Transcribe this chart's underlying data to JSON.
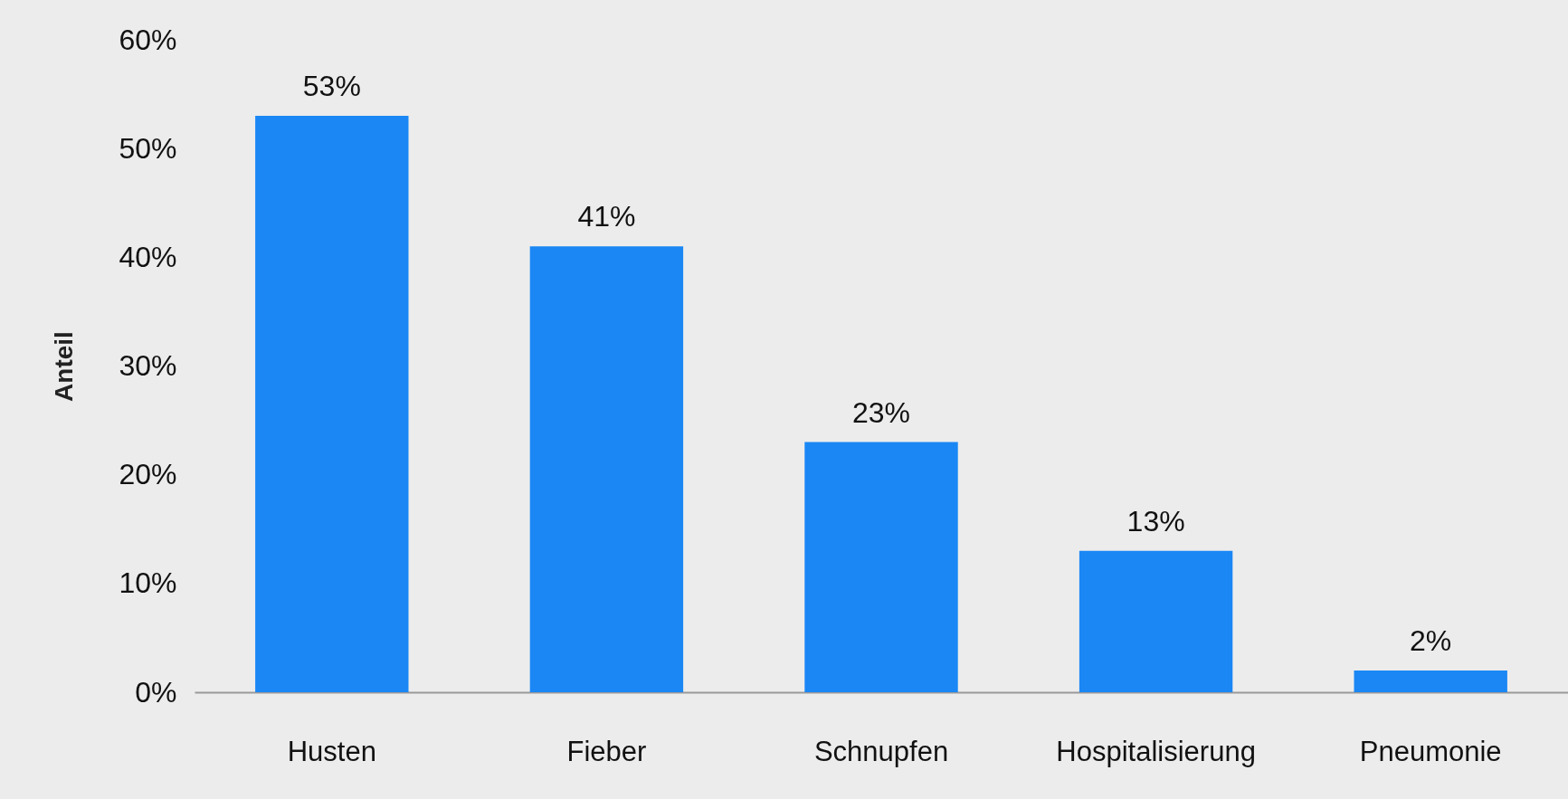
{
  "chart_data": {
    "type": "bar",
    "ylabel": "Anteil",
    "categories": [
      "Husten",
      "Fieber",
      "Schnupfen",
      "Hospitalisierung",
      "Pneumonie"
    ],
    "values": [
      53,
      41,
      23,
      13,
      2
    ],
    "color": "#1a87f5",
    "value_labels": [
      "53%",
      "41%",
      "23%",
      "13%",
      "2%"
    ],
    "ylim": [
      0,
      60
    ],
    "yticks": [
      {
        "value": 0,
        "label": "0%"
      },
      {
        "value": 10,
        "label": "10%"
      },
      {
        "value": 20,
        "label": "20%"
      },
      {
        "value": 30,
        "label": "30%"
      },
      {
        "value": 40,
        "label": "40%"
      },
      {
        "value": 50,
        "label": "50%"
      },
      {
        "value": 60,
        "label": "60%"
      }
    ],
    "grid": false
  }
}
